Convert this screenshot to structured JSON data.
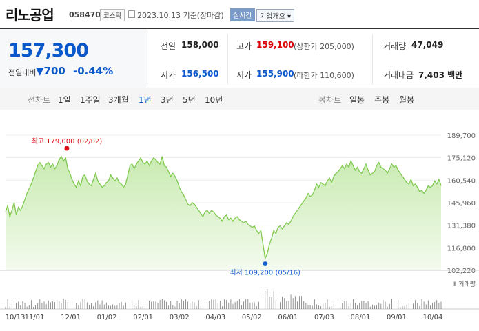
{
  "header": {
    "title": "리노공업",
    "code": "058470",
    "market_badge": "코스닥",
    "date_text": "2023.10.13 기준(장마감)",
    "live_label": "실시간",
    "corp_label": "기업개요 ▾"
  },
  "quote": {
    "price": "157,300",
    "change_label": "전일대비",
    "change_value": "▼700",
    "change_pct": "-0.44%",
    "prev_close_label": "전일",
    "prev_close": "158,000",
    "high_label": "고가",
    "high": "159,100",
    "upper_limit": "(상한가 205,000)",
    "volume_label": "거래량",
    "volume": "47,049",
    "open_label": "시가",
    "open": "156,500",
    "low_label": "저가",
    "low": "155,900",
    "lower_limit": "(하한가 110,600)",
    "amount_label": "거래대금",
    "amount": "7,403 백만"
  },
  "tabs": {
    "line_label": "선차트",
    "periods": [
      "1일",
      "1주일",
      "3개월",
      "1년",
      "3년",
      "5년",
      "10년"
    ],
    "active_period": "1년",
    "candle_label": "봉차트",
    "candles": [
      "일봉",
      "주봉",
      "월봉"
    ]
  },
  "chart_data": {
    "type": "area",
    "y_ticks": [
      189700,
      175120,
      160540,
      145960,
      131380,
      116800,
      102220
    ],
    "ylim": [
      102220,
      189700
    ],
    "x_ticks": [
      "10/13",
      "11/01",
      "12/01",
      "01/02",
      "02/01",
      "03/02",
      "04/03",
      "05/02",
      "06/01",
      "07/03",
      "08/01",
      "09/01",
      "10/04"
    ],
    "annotations": {
      "max_label": "최고 179,000 (02/02)",
      "min_label": "최저 109,200 (05/16)"
    },
    "volume_label": "거래량",
    "colors": {
      "line": "#7fc94f",
      "fill_top": "#c8eab0",
      "fill_bottom": "#f4fbef",
      "max_dot": "#e0101b",
      "min_dot": "#1a5fd0",
      "max_text": "#e0101b",
      "min_text": "#1a5fd0"
    },
    "series": [
      {
        "values": [
          140000,
          144000,
          137000,
          141000,
          146000,
          138000,
          143000,
          141000,
          144000,
          148000,
          152000,
          155000,
          158000,
          162000,
          166000,
          170000,
          172000,
          170000,
          168000,
          171000,
          172000,
          169000,
          171000,
          168000,
          170000,
          174000,
          176000,
          173000,
          175000,
          168000,
          165000,
          161000,
          158000,
          156000,
          160000,
          157000,
          163000,
          164000,
          160000,
          158000,
          157000,
          161000,
          165000,
          160000,
          158000,
          156000,
          157000,
          159000,
          160000,
          164000,
          162000,
          160000,
          162000,
          159000,
          158000,
          156000,
          158000,
          164000,
          170000,
          171000,
          168000,
          171000,
          173000,
          175000,
          172000,
          171000,
          173000,
          170000,
          173000,
          175000,
          174000,
          172000,
          171000,
          176000,
          170000,
          169000,
          166000,
          163000,
          165000,
          163000,
          160000,
          156000,
          153000,
          151000,
          148000,
          145000,
          144000,
          146000,
          145000,
          143000,
          141000,
          139000,
          137000,
          140000,
          141000,
          139000,
          141000,
          140000,
          138000,
          137000,
          136000,
          134000,
          137000,
          138000,
          135000,
          136000,
          134000,
          136000,
          137000,
          135000,
          134000,
          133000,
          134000,
          132000,
          131000,
          130000,
          131000,
          128000,
          126000,
          128000,
          119000,
          110000,
          113000,
          119000,
          123000,
          128000,
          126000,
          130000,
          131000,
          129000,
          131000,
          133000,
          132000,
          134000,
          137000,
          139000,
          141000,
          143000,
          145000,
          147000,
          149000,
          152000,
          150000,
          151000,
          154000,
          158000,
          156000,
          159000,
          158000,
          157000,
          160000,
          162000,
          159000,
          163000,
          165000,
          166000,
          168000,
          170000,
          168000,
          171000,
          169000,
          173000,
          170000,
          167000,
          169000,
          166000,
          165000,
          168000,
          171000,
          167000,
          164000,
          165000,
          166000,
          170000,
          172000,
          169000,
          168000,
          167000,
          165000,
          168000,
          171000,
          169000,
          170000,
          167000,
          165000,
          163000,
          161000,
          159000,
          158000,
          161000,
          157000,
          158000,
          156000,
          153000,
          154000,
          152000,
          154000,
          157000,
          156000,
          157000,
          160000,
          158000,
          161000,
          157000
        ]
      }
    ]
  }
}
